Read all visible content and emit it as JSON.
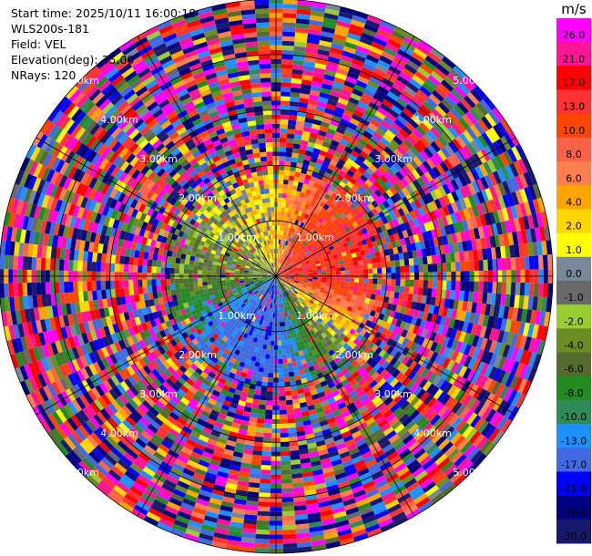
{
  "header": {
    "start_time": "Start time: 2025/10/11 16:00:18",
    "instrument": "WLS200s-181",
    "field": "Field: VEL",
    "elevation": "Elevation(deg): 35.00",
    "nrays": "NRays: 120"
  },
  "chart_data": {
    "type": "polar-ppi",
    "field": "VEL",
    "unit": "m/s",
    "nrays": 120,
    "elevation_deg": 35.0,
    "range_rings_km": [
      1.0,
      2.0,
      3.0,
      4.0,
      5.0
    ],
    "range_ring_labels": [
      "1.00km",
      "2.00km",
      "3.00km",
      "4.00km",
      "5.00km"
    ],
    "max_range_km": 5.0,
    "colorbar": {
      "unit_label": "m/s",
      "tick_labels": [
        "26.0",
        "21.0",
        "17.0",
        "13.0",
        "10.0",
        "8.0",
        "6.0",
        "4.0",
        "2.0",
        "1.0",
        "0.0",
        "-1.0",
        "-2.0",
        "-4.0",
        "-6.0",
        "-8.0",
        "-10.0",
        "-13.0",
        "-17.0",
        "-21.0",
        "-26.0",
        "-30.0"
      ],
      "bins_top_to_bottom": [
        {
          "min": 26,
          "max": 30,
          "color": "#ff00ff"
        },
        {
          "min": 21,
          "max": 26,
          "color": "#ff1493"
        },
        {
          "min": 17,
          "max": 21,
          "color": "#ff0000"
        },
        {
          "min": 13,
          "max": 17,
          "color": "#ff3333"
        },
        {
          "min": 10,
          "max": 13,
          "color": "#ff4500"
        },
        {
          "min": 8,
          "max": 10,
          "color": "#ff6347"
        },
        {
          "min": 6,
          "max": 8,
          "color": "#ff7f50"
        },
        {
          "min": 4,
          "max": 6,
          "color": "#ffa500"
        },
        {
          "min": 2,
          "max": 4,
          "color": "#ffd700"
        },
        {
          "min": 1,
          "max": 2,
          "color": "#ffff00"
        },
        {
          "min": 0,
          "max": 1,
          "color": "#778899"
        },
        {
          "min": -1,
          "max": 0,
          "color": "#696969"
        },
        {
          "min": -2,
          "max": -1,
          "color": "#9acd32"
        },
        {
          "min": -4,
          "max": -2,
          "color": "#6b8e23"
        },
        {
          "min": -6,
          "max": -4,
          "color": "#556b2f"
        },
        {
          "min": -8,
          "max": -6,
          "color": "#228b22"
        },
        {
          "min": -10,
          "max": -8,
          "color": "#2e8b57"
        },
        {
          "min": -13,
          "max": -10,
          "color": "#1e90ff"
        },
        {
          "min": -17,
          "max": -13,
          "color": "#4169e1"
        },
        {
          "min": -21,
          "max": -17,
          "color": "#0000ff"
        },
        {
          "min": -26,
          "max": -21,
          "color": "#000080"
        },
        {
          "min": -30,
          "max": -26,
          "color": "#191970"
        }
      ]
    },
    "gate_count": 60,
    "pattern_note_values_ms": {
      "north_inner": 3,
      "east_inner": 15,
      "south_inner": -15,
      "west_inner": -3,
      "outer": "noise"
    }
  }
}
